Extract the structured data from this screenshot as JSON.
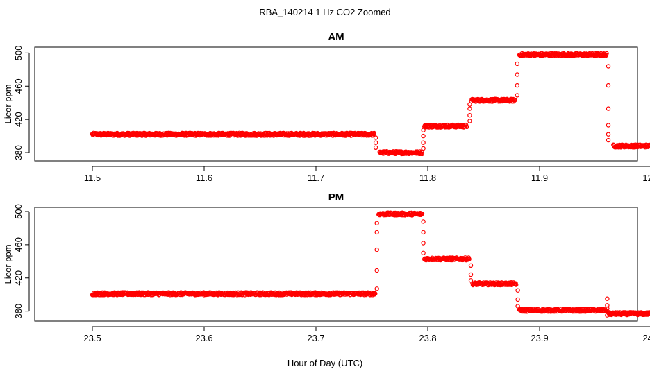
{
  "figure": {
    "title": "RBA_140214  1 Hz CO2 Zoomed",
    "xlabel": "Hour of Day (UTC)"
  },
  "chart_data": [
    {
      "type": "scatter",
      "title": "AM",
      "xlabel": "",
      "ylabel": "Licor ppm",
      "xlim": [
        11.5,
        12.0
      ],
      "ylim": [
        370,
        507
      ],
      "xticks": [
        "11.5",
        "11.6",
        "11.7",
        "11.8",
        "11.9",
        "12.0"
      ],
      "yticks": [
        "380",
        "420",
        "460",
        "500"
      ],
      "marker_color": "#ff0000",
      "grid": false,
      "segments": [
        {
          "x0": 11.5,
          "x1": 11.752,
          "y": 402
        },
        {
          "x0": 11.757,
          "x1": 11.795,
          "y": 380
        },
        {
          "x0": 11.797,
          "x1": 11.835,
          "y": 412
        },
        {
          "x0": 11.839,
          "x1": 11.878,
          "y": 443
        },
        {
          "x0": 11.882,
          "x1": 11.96,
          "y": 498
        },
        {
          "x0": 11.966,
          "x1": 12.0,
          "y": 388
        }
      ],
      "transitions": [
        {
          "x": 11.7535,
          "y": [
            398,
            392,
            386
          ]
        },
        {
          "x": 11.796,
          "y": [
            385,
            392,
            400,
            407
          ]
        },
        {
          "x": 11.8375,
          "y": [
            418,
            425,
            433,
            438
          ]
        },
        {
          "x": 11.88,
          "y": [
            449,
            461,
            474,
            487
          ]
        },
        {
          "x": 11.9615,
          "y": [
            484,
            461,
            433,
            413,
            402,
            395
          ]
        }
      ]
    },
    {
      "type": "scatter",
      "title": "PM",
      "xlabel": "",
      "ylabel": "Licor ppm",
      "xlim": [
        23.5,
        24.0
      ],
      "ylim": [
        368,
        505
      ],
      "xticks": [
        "23.5",
        "23.6",
        "23.7",
        "23.8",
        "23.9",
        "24.0"
      ],
      "yticks": [
        "380",
        "420",
        "460",
        "500"
      ],
      "marker_color": "#ff0000",
      "grid": false,
      "segments": [
        {
          "x0": 23.5,
          "x1": 23.753,
          "y": 401
        },
        {
          "x0": 23.756,
          "x1": 23.795,
          "y": 497
        },
        {
          "x0": 23.797,
          "x1": 23.837,
          "y": 443
        },
        {
          "x0": 23.84,
          "x1": 23.879,
          "y": 413
        },
        {
          "x0": 23.882,
          "x1": 23.96,
          "y": 381
        },
        {
          "x0": 23.962,
          "x1": 24.0,
          "y": 377
        }
      ],
      "transitions": [
        {
          "x": 23.7545,
          "y": [
            407,
            429,
            454,
            475,
            486
          ]
        },
        {
          "x": 23.796,
          "y": [
            488,
            475,
            462,
            450
          ]
        },
        {
          "x": 23.8385,
          "y": [
            435,
            424,
            417
          ]
        },
        {
          "x": 23.8805,
          "y": [
            405,
            394,
            386
          ]
        },
        {
          "x": 23.9605,
          "y": [
            395,
            387,
            383,
            375
          ]
        }
      ]
    }
  ]
}
